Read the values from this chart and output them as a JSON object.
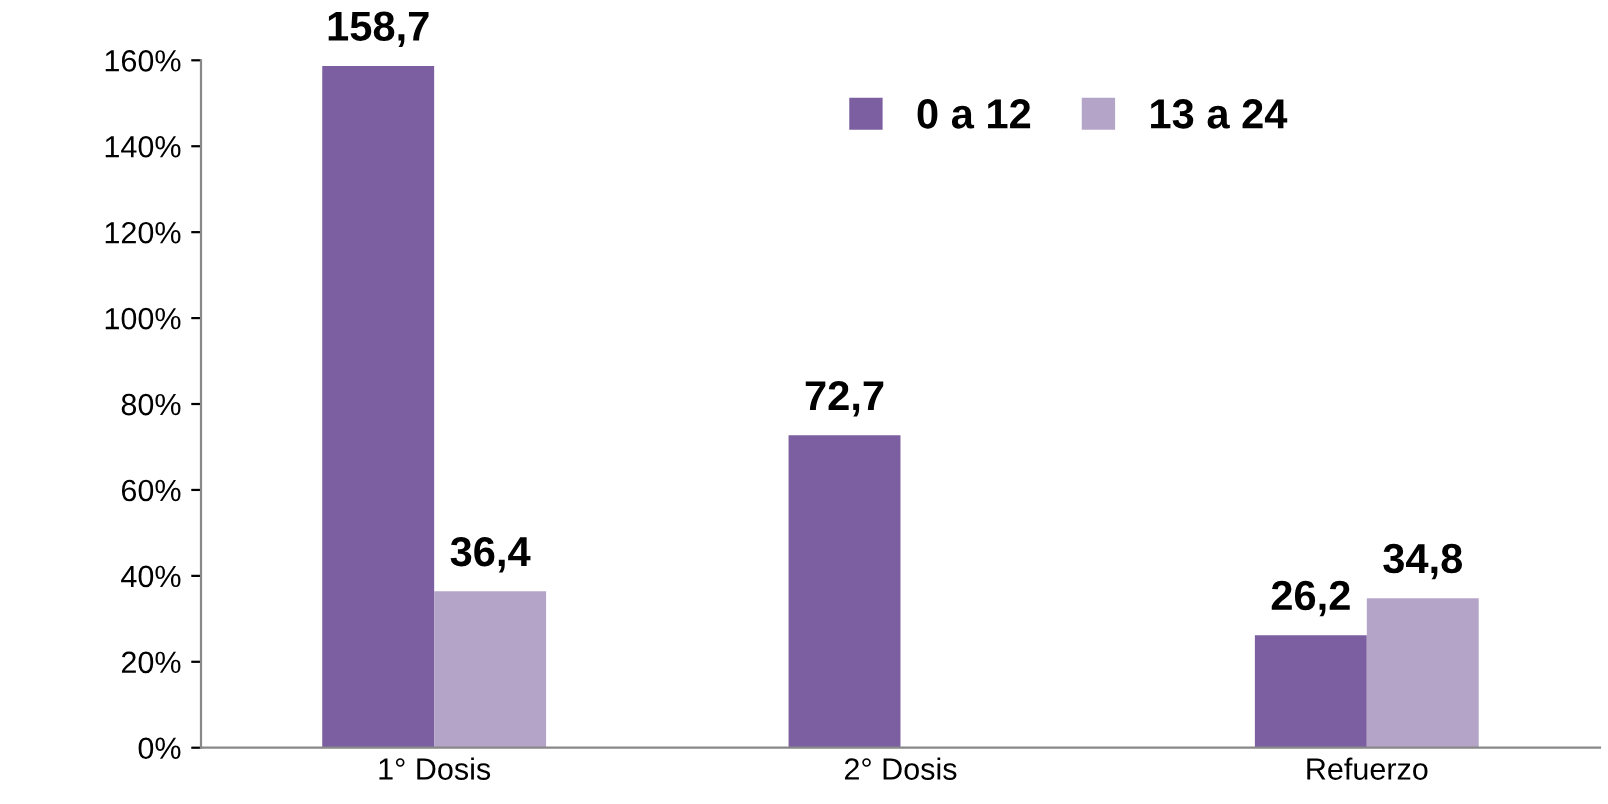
{
  "chart_data": {
    "type": "bar",
    "categories": [
      "1° Dosis",
      "2° Dosis",
      "Refuerzo"
    ],
    "series": [
      {
        "name": "0 a 12",
        "color": "#7b5fa0",
        "values": [
          158.7,
          72.7,
          26.2
        ],
        "value_labels": [
          "158,7",
          "72,7",
          "26,2"
        ]
      },
      {
        "name": "13 a 24",
        "color": "#b4a5c8",
        "values": [
          36.4,
          null,
          34.8
        ],
        "value_labels": [
          "36,4",
          null,
          "34,8"
        ]
      }
    ],
    "ylim": [
      0,
      160
    ],
    "yticks": [
      {
        "value": 0,
        "label": "0%"
      },
      {
        "value": 20,
        "label": "20%"
      },
      {
        "value": 40,
        "label": "40%"
      },
      {
        "value": 60,
        "label": "60%"
      },
      {
        "value": 80,
        "label": "80%"
      },
      {
        "value": 100,
        "label": "100%"
      },
      {
        "value": 120,
        "label": "120%"
      },
      {
        "value": 140,
        "label": "140%"
      },
      {
        "value": 160,
        "label": "160%"
      }
    ],
    "grid": false,
    "legend": "top"
  }
}
